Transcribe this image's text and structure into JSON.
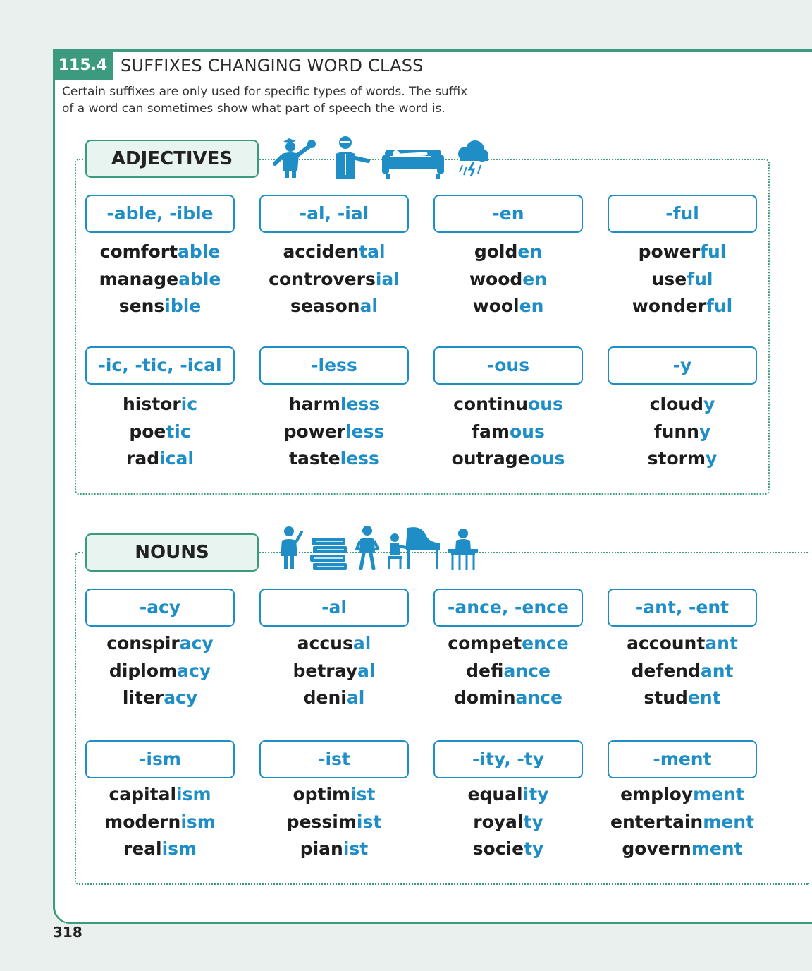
{
  "section": {
    "number": "115.4",
    "title": "SUFFIXES CHANGING WORD CLASS",
    "intro_line1": "Certain suffixes are only used for specific types of words. The suffix",
    "intro_line2": "of a word can sometimes show what part of speech the word is."
  },
  "adjectives": {
    "label": "ADJECTIVES",
    "icons": [
      "heroic-actor-with-skull-icon",
      "scientist-presenting-icon",
      "person-on-sofa-icon",
      "storm-cloud-icon"
    ],
    "groups": [
      {
        "suffix": "-able, -ible",
        "words": [
          [
            "comfort",
            "able"
          ],
          [
            "manage",
            "able"
          ],
          [
            "sens",
            "ible"
          ]
        ]
      },
      {
        "suffix": "-al, -ial",
        "words": [
          [
            "acciden",
            "tal"
          ],
          [
            "controvers",
            "ial"
          ],
          [
            "season",
            "al"
          ]
        ]
      },
      {
        "suffix": "-en",
        "words": [
          [
            "gold",
            "en"
          ],
          [
            "wood",
            "en"
          ],
          [
            "wool",
            "en"
          ]
        ]
      },
      {
        "suffix": "-ful",
        "words": [
          [
            "power",
            "ful"
          ],
          [
            "use",
            "ful"
          ],
          [
            "wonder",
            "ful"
          ]
        ]
      },
      {
        "suffix": "-ic, -tic, -ical",
        "words": [
          [
            "histor",
            "ic"
          ],
          [
            "poe",
            "tic"
          ],
          [
            "rad",
            "ical"
          ]
        ]
      },
      {
        "suffix": "-less",
        "words": [
          [
            "harm",
            "less"
          ],
          [
            "power",
            "less"
          ],
          [
            "taste",
            "less"
          ]
        ]
      },
      {
        "suffix": "-ous",
        "words": [
          [
            "continu",
            "ous"
          ],
          [
            "fam",
            "ous"
          ],
          [
            "outrage",
            "ous"
          ]
        ]
      },
      {
        "suffix": "-y",
        "words": [
          [
            "cloud",
            "y"
          ],
          [
            "funn",
            "y"
          ],
          [
            "storm",
            "y"
          ]
        ]
      }
    ]
  },
  "nouns": {
    "label": "NOUNS",
    "icons": [
      "accuser-icon",
      "book-stack-icon",
      "defiant-person-icon",
      "pianist-icon",
      "student-at-desk-icon"
    ],
    "groups": [
      {
        "suffix": "-acy",
        "words": [
          [
            "conspir",
            "acy"
          ],
          [
            "diplom",
            "acy"
          ],
          [
            "liter",
            "acy"
          ]
        ]
      },
      {
        "suffix": "-al",
        "words": [
          [
            "accus",
            "al"
          ],
          [
            "betray",
            "al"
          ],
          [
            "deni",
            "al"
          ]
        ]
      },
      {
        "suffix": "-ance, -ence",
        "words": [
          [
            "compet",
            "ence"
          ],
          [
            "defi",
            "ance"
          ],
          [
            "domin",
            "ance"
          ]
        ]
      },
      {
        "suffix": "-ant, -ent",
        "words": [
          [
            "account",
            "ant"
          ],
          [
            "defend",
            "ant"
          ],
          [
            "stud",
            "ent"
          ]
        ]
      },
      {
        "suffix": "-ism",
        "words": [
          [
            "capital",
            "ism"
          ],
          [
            "modern",
            "ism"
          ],
          [
            "real",
            "ism"
          ]
        ]
      },
      {
        "suffix": "-ist",
        "words": [
          [
            "optim",
            "ist"
          ],
          [
            "pessim",
            "ist"
          ],
          [
            "pian",
            "ist"
          ]
        ]
      },
      {
        "suffix": "-ity, -ty",
        "words": [
          [
            "equal",
            "ity"
          ],
          [
            "royal",
            "ty"
          ],
          [
            "socie",
            "ty"
          ]
        ]
      },
      {
        "suffix": "-ment",
        "words": [
          [
            "employ",
            "ment"
          ],
          [
            "entertain",
            "ment"
          ],
          [
            "govern",
            "ment"
          ]
        ]
      }
    ]
  },
  "page_number": "318",
  "colors": {
    "accent_green": "#3c9a7f",
    "suffix_blue": "#1f8ec7"
  }
}
